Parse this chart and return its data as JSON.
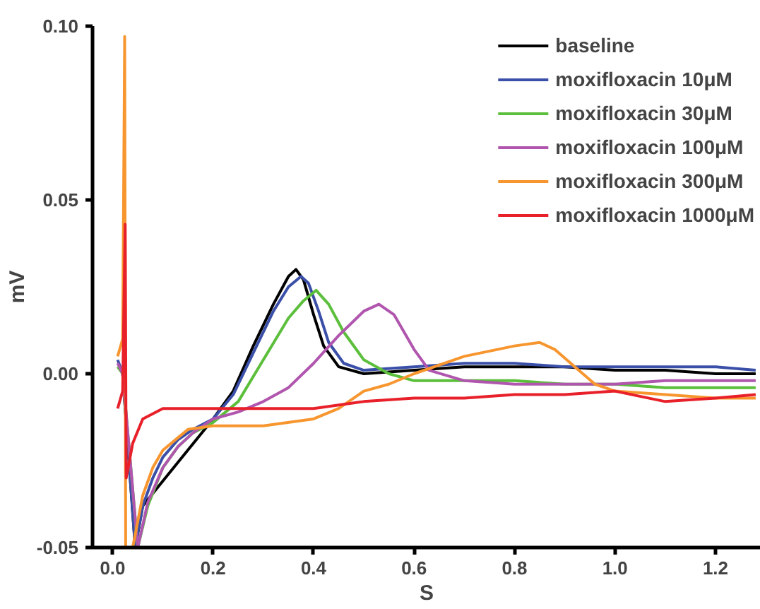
{
  "chart_data": {
    "type": "line",
    "xlabel": "S",
    "ylabel": "mV",
    "xlim": [
      -0.04,
      1.29
    ],
    "ylim": [
      -0.05,
      0.1
    ],
    "xticks": [
      {
        "value": 0,
        "label": "0.0"
      },
      {
        "value": 0.2,
        "label": "0.2"
      },
      {
        "value": 0.4,
        "label": "0.4"
      },
      {
        "value": 0.6,
        "label": "0.6"
      },
      {
        "value": 0.8,
        "label": "0.8"
      },
      {
        "value": 1.0,
        "label": "1.0"
      },
      {
        "value": 1.2,
        "label": "1.2"
      }
    ],
    "yticks": [
      {
        "value": -0.05,
        "label": "-0.05"
      },
      {
        "value": 0,
        "label": "0.00"
      },
      {
        "value": 0.05,
        "label": "0.05"
      },
      {
        "value": 0.1,
        "label": "0.10"
      }
    ],
    "grid": false,
    "legend": "top right",
    "line_style": "solid",
    "marker": "none",
    "series": [
      {
        "name": "baseline",
        "color": "#000000",
        "x": [
          0.02,
          0.045,
          0.06,
          0.2,
          0.24,
          0.28,
          0.32,
          0.35,
          0.365,
          0.38,
          0.4,
          0.42,
          0.45,
          0.5,
          0.6,
          0.7,
          0.8,
          0.9,
          1.0,
          1.1,
          1.2,
          1.28
        ],
        "values": [
          0.0,
          -0.05,
          -0.038,
          -0.013,
          -0.005,
          0.008,
          0.02,
          0.028,
          0.03,
          0.027,
          0.017,
          0.008,
          0.002,
          0.0,
          0.001,
          0.002,
          0.002,
          0.002,
          0.001,
          0.001,
          0.0,
          0.0
        ]
      },
      {
        "name": "moxifloxacin 10μM",
        "color": "#3a4fa8",
        "x": [
          0.01,
          0.02,
          0.045,
          0.06,
          0.08,
          0.1,
          0.13,
          0.16,
          0.2,
          0.24,
          0.28,
          0.32,
          0.35,
          0.375,
          0.39,
          0.41,
          0.43,
          0.46,
          0.5,
          0.6,
          0.7,
          0.8,
          0.9,
          1.0,
          1.1,
          1.2,
          1.28
        ],
        "values": [
          0.004,
          0.0,
          -0.05,
          -0.038,
          -0.03,
          -0.024,
          -0.019,
          -0.016,
          -0.013,
          -0.006,
          0.006,
          0.018,
          0.025,
          0.028,
          0.026,
          0.018,
          0.009,
          0.003,
          0.001,
          0.002,
          0.003,
          0.003,
          0.002,
          0.002,
          0.002,
          0.002,
          0.001
        ]
      },
      {
        "name": "moxifloxacin 30μM",
        "color": "#5cbf3c",
        "x": [
          0.01,
          0.02,
          0.05,
          0.07,
          0.1,
          0.13,
          0.16,
          0.2,
          0.25,
          0.3,
          0.35,
          0.38,
          0.405,
          0.43,
          0.46,
          0.5,
          0.55,
          0.6,
          0.7,
          0.8,
          0.9,
          1.0,
          1.1,
          1.2,
          1.28
        ],
        "values": [
          0.002,
          0.0,
          -0.05,
          -0.038,
          -0.027,
          -0.021,
          -0.017,
          -0.014,
          -0.008,
          0.004,
          0.016,
          0.021,
          0.024,
          0.02,
          0.012,
          0.004,
          0.0,
          -0.002,
          -0.002,
          -0.002,
          -0.003,
          -0.003,
          -0.004,
          -0.004,
          -0.004
        ]
      },
      {
        "name": "moxifloxacin 100μM",
        "color": "#b056ae",
        "x": [
          0.01,
          0.02,
          0.05,
          0.07,
          0.1,
          0.13,
          0.16,
          0.2,
          0.25,
          0.3,
          0.35,
          0.4,
          0.45,
          0.5,
          0.53,
          0.56,
          0.6,
          0.63,
          0.7,
          0.8,
          0.9,
          1.0,
          1.1,
          1.2,
          1.28
        ],
        "values": [
          0.003,
          0.0,
          -0.05,
          -0.037,
          -0.027,
          -0.021,
          -0.017,
          -0.013,
          -0.011,
          -0.008,
          -0.004,
          0.003,
          0.011,
          0.018,
          0.02,
          0.017,
          0.007,
          0.001,
          -0.002,
          -0.003,
          -0.003,
          -0.003,
          -0.002,
          -0.002,
          -0.002
        ]
      },
      {
        "name": "moxifloxacin 300μM",
        "color": "#f7962f",
        "x": [
          0.01,
          0.02,
          0.024,
          0.026,
          null,
          0.04,
          0.06,
          0.08,
          0.1,
          0.15,
          0.2,
          0.3,
          0.4,
          0.45,
          0.5,
          0.55,
          0.6,
          0.7,
          0.8,
          0.85,
          0.88,
          0.92,
          0.96,
          1.0,
          1.1,
          1.2,
          1.28
        ],
        "values": [
          0.005,
          0.01,
          0.097,
          -0.05,
          null,
          -0.05,
          -0.035,
          -0.027,
          -0.022,
          -0.016,
          -0.015,
          -0.015,
          -0.013,
          -0.01,
          -0.005,
          -0.003,
          0.0,
          0.005,
          0.008,
          0.009,
          0.007,
          0.002,
          -0.003,
          -0.005,
          -0.006,
          -0.007,
          -0.007
        ]
      },
      {
        "name": "moxifloxacin 1000μM",
        "color": "#e8202a",
        "x": [
          0.01,
          0.02,
          0.025,
          0.027,
          0.04,
          0.06,
          0.1,
          0.2,
          0.3,
          0.4,
          0.5,
          0.6,
          0.7,
          0.8,
          0.9,
          1.0,
          1.1,
          1.2,
          1.28
        ],
        "values": [
          -0.01,
          -0.005,
          0.043,
          -0.03,
          -0.02,
          -0.013,
          -0.01,
          -0.01,
          -0.01,
          -0.01,
          -0.008,
          -0.007,
          -0.007,
          -0.006,
          -0.006,
          -0.005,
          -0.008,
          -0.007,
          -0.006
        ]
      }
    ]
  }
}
